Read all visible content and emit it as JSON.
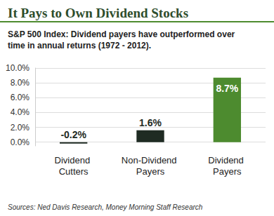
{
  "chart_data": {
    "type": "bar",
    "title": "It Pays to Own Dividend Stocks",
    "subtitle": "S&P 500 Index: Dividend payers have outperformed over time in annual returns (1972 - 2012).",
    "source": "Sources: Ned Davis Research, Money Morning Staff Research",
    "categories": [
      "Dividend Cutters",
      "Non-Dividend Payers",
      "Dividend Payers"
    ],
    "values": [
      -0.2,
      1.6,
      8.7
    ],
    "value_labels": [
      "-0.2%",
      "1.6%",
      "8.7%"
    ],
    "colors": [
      "#1f2b23",
      "#1f2b23",
      "#4d8b2f"
    ],
    "ylim": [
      -0.5,
      10
    ],
    "yticks": [
      {
        "value": 0,
        "label": "0.0%"
      },
      {
        "value": 2,
        "label": "2.0%"
      },
      {
        "value": 4,
        "label": "4.0%"
      },
      {
        "value": 6,
        "label": "6.0%"
      },
      {
        "value": 8,
        "label": "8.0%"
      },
      {
        "value": 10,
        "label": "10.0%"
      }
    ],
    "grid": true,
    "data_labels": true
  }
}
